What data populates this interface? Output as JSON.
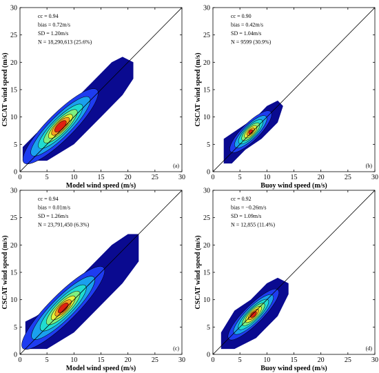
{
  "chart_data": [
    {
      "type": "heatmap",
      "panel_label": "(a)",
      "xlabel": "Model wind speed (m/s)",
      "ylabel": "CSCAT wind speed (m/s)",
      "xlim": [
        0,
        30
      ],
      "ylim": [
        0,
        30
      ],
      "xticks": [
        0,
        5,
        10,
        15,
        20,
        25,
        30
      ],
      "yticks": [
        0,
        5,
        10,
        15,
        20,
        25,
        30
      ],
      "stats": [
        "cc = 0.94",
        "bias = 0.72m/s",
        "SD = 1.20m/s",
        "N = 18,290,613 (25.6%)"
      ],
      "reference_line": [
        [
          0,
          0
        ],
        [
          30,
          30
        ]
      ],
      "density": {
        "outer": [
          [
            0.5,
            2
          ],
          [
            2,
            2
          ],
          [
            5,
            2
          ],
          [
            10,
            5
          ],
          [
            15,
            10
          ],
          [
            19,
            14
          ],
          [
            21,
            17
          ],
          [
            21,
            20
          ],
          [
            19,
            21
          ],
          [
            17,
            20
          ],
          [
            14,
            17
          ],
          [
            10,
            13
          ],
          [
            6,
            9
          ],
          [
            3,
            7
          ],
          [
            0.5,
            4.5
          ]
        ],
        "center": [
          7.5,
          8.3
        ],
        "levels": [
          {
            "rx": 9.5,
            "ry": 2.4,
            "color": "#1e3cf0"
          },
          {
            "rx": 7.5,
            "ry": 1.9,
            "color": "#1aa0ee"
          },
          {
            "rx": 5.6,
            "ry": 1.5,
            "color": "#20dcd0"
          },
          {
            "rx": 4.2,
            "ry": 1.2,
            "color": "#7ef080"
          },
          {
            "rx": 3.0,
            "ry": 0.95,
            "color": "#e6f03a"
          },
          {
            "rx": 2.2,
            "ry": 0.8,
            "color": "#f8a020"
          },
          {
            "rx": 1.4,
            "ry": 0.6,
            "color": "#e02010"
          }
        ]
      }
    },
    {
      "type": "heatmap",
      "panel_label": "(b)",
      "xlabel": "Buoy wind speed (m/s)",
      "ylabel": "CSCAT wind speed (m/s)",
      "xlim": [
        0,
        30
      ],
      "ylim": [
        0,
        30
      ],
      "xticks": [
        0,
        5,
        10,
        15,
        20,
        25,
        30
      ],
      "yticks": [
        0,
        5,
        10,
        15,
        20,
        25,
        30
      ],
      "stats": [
        "cc = 0.90",
        "bias = 0.42m/s",
        "SD = 1.04m/s",
        "N = 9599 (30.9%)"
      ],
      "reference_line": [
        [
          0,
          0
        ],
        [
          30,
          30
        ]
      ],
      "density": {
        "outer": [
          [
            2,
            1.5
          ],
          [
            3.5,
            1.5
          ],
          [
            6,
            4
          ],
          [
            9,
            6
          ],
          [
            12,
            9
          ],
          [
            13,
            12
          ],
          [
            12,
            13
          ],
          [
            10,
            12
          ],
          [
            8,
            10
          ],
          [
            5,
            8
          ],
          [
            2,
            6
          ]
        ],
        "center": [
          7,
          7.3
        ],
        "levels": [
          {
            "rx": 5.2,
            "ry": 1.6,
            "color": "#1e3cf0"
          },
          {
            "rx": 4.0,
            "ry": 1.3,
            "color": "#1aa0ee"
          },
          {
            "rx": 3.0,
            "ry": 1.05,
            "color": "#20dcd0"
          },
          {
            "rx": 2.2,
            "ry": 0.85,
            "color": "#7ef080"
          },
          {
            "rx": 1.5,
            "ry": 0.65,
            "color": "#e6f03a"
          },
          {
            "rx": 0.9,
            "ry": 0.45,
            "color": "#f8a020"
          },
          {
            "rx": 0.45,
            "ry": 0.3,
            "color": "#e02010"
          }
        ]
      }
    },
    {
      "type": "heatmap",
      "panel_label": "(c)",
      "xlabel": "Model wind speed (m/s)",
      "ylabel": "CSCAT wind speed (m/s)",
      "xlim": [
        0,
        30
      ],
      "ylim": [
        0,
        30
      ],
      "xticks": [
        0,
        5,
        10,
        15,
        20,
        25,
        30
      ],
      "yticks": [
        0,
        5,
        10,
        15,
        20,
        25,
        30
      ],
      "stats": [
        "cc = 0.94",
        "bias = 0.01m/s",
        "SD = 1.26m/s",
        "N = 23,791,450 (6.3%)"
      ],
      "reference_line": [
        [
          0,
          0
        ],
        [
          30,
          30
        ]
      ],
      "density": {
        "outer": [
          [
            1,
            1
          ],
          [
            5,
            1
          ],
          [
            10,
            4
          ],
          [
            15,
            9
          ],
          [
            19,
            13
          ],
          [
            22,
            17
          ],
          [
            22,
            22
          ],
          [
            20,
            22
          ],
          [
            17,
            20
          ],
          [
            14,
            17
          ],
          [
            10,
            13
          ],
          [
            6,
            9
          ],
          [
            3,
            7
          ],
          [
            1,
            6
          ]
        ],
        "center": [
          8,
          8.5
        ],
        "levels": [
          {
            "rx": 10.5,
            "ry": 2.5,
            "color": "#1e3cf0"
          },
          {
            "rx": 8.0,
            "ry": 2.0,
            "color": "#1aa0ee"
          },
          {
            "rx": 5.8,
            "ry": 1.6,
            "color": "#20dcd0"
          },
          {
            "rx": 4.2,
            "ry": 1.25,
            "color": "#7ef080"
          },
          {
            "rx": 3.0,
            "ry": 0.95,
            "color": "#e6f03a"
          },
          {
            "rx": 2.0,
            "ry": 0.75,
            "color": "#f8a020"
          },
          {
            "rx": 1.2,
            "ry": 0.55,
            "color": "#e02010"
          }
        ]
      }
    },
    {
      "type": "heatmap",
      "panel_label": "(d)",
      "xlabel": "Buoy wind speed (m/s)",
      "ylabel": "CSCAT wind speed (m/s)",
      "xlim": [
        0,
        30
      ],
      "ylim": [
        0,
        30
      ],
      "xticks": [
        0,
        5,
        10,
        15,
        20,
        25,
        30
      ],
      "yticks": [
        0,
        5,
        10,
        15,
        20,
        25,
        30
      ],
      "stats": [
        "cc = 0.92",
        "bias = −0.26m/s",
        "SD = 1.09m/s",
        "N = 12,855 (11.4%)"
      ],
      "reference_line": [
        [
          0,
          0
        ],
        [
          30,
          30
        ]
      ],
      "density": {
        "outer": [
          [
            1.5,
            1
          ],
          [
            4,
            1
          ],
          [
            8,
            3
          ],
          [
            12,
            7
          ],
          [
            14,
            11
          ],
          [
            14,
            13
          ],
          [
            12,
            14
          ],
          [
            10,
            13
          ],
          [
            7,
            10
          ],
          [
            4,
            8
          ],
          [
            1.5,
            4
          ]
        ],
        "center": [
          7.5,
          7.3
        ],
        "levels": [
          {
            "rx": 6.4,
            "ry": 1.7,
            "color": "#1e3cf0"
          },
          {
            "rx": 5.0,
            "ry": 1.4,
            "color": "#1aa0ee"
          },
          {
            "rx": 3.8,
            "ry": 1.1,
            "color": "#20dcd0"
          },
          {
            "rx": 2.8,
            "ry": 0.9,
            "color": "#7ef080"
          },
          {
            "rx": 2.0,
            "ry": 0.7,
            "color": "#e6f03a"
          },
          {
            "rx": 1.3,
            "ry": 0.5,
            "color": "#f8a020"
          },
          {
            "rx": 0.7,
            "ry": 0.35,
            "color": "#e02010"
          }
        ]
      }
    }
  ]
}
